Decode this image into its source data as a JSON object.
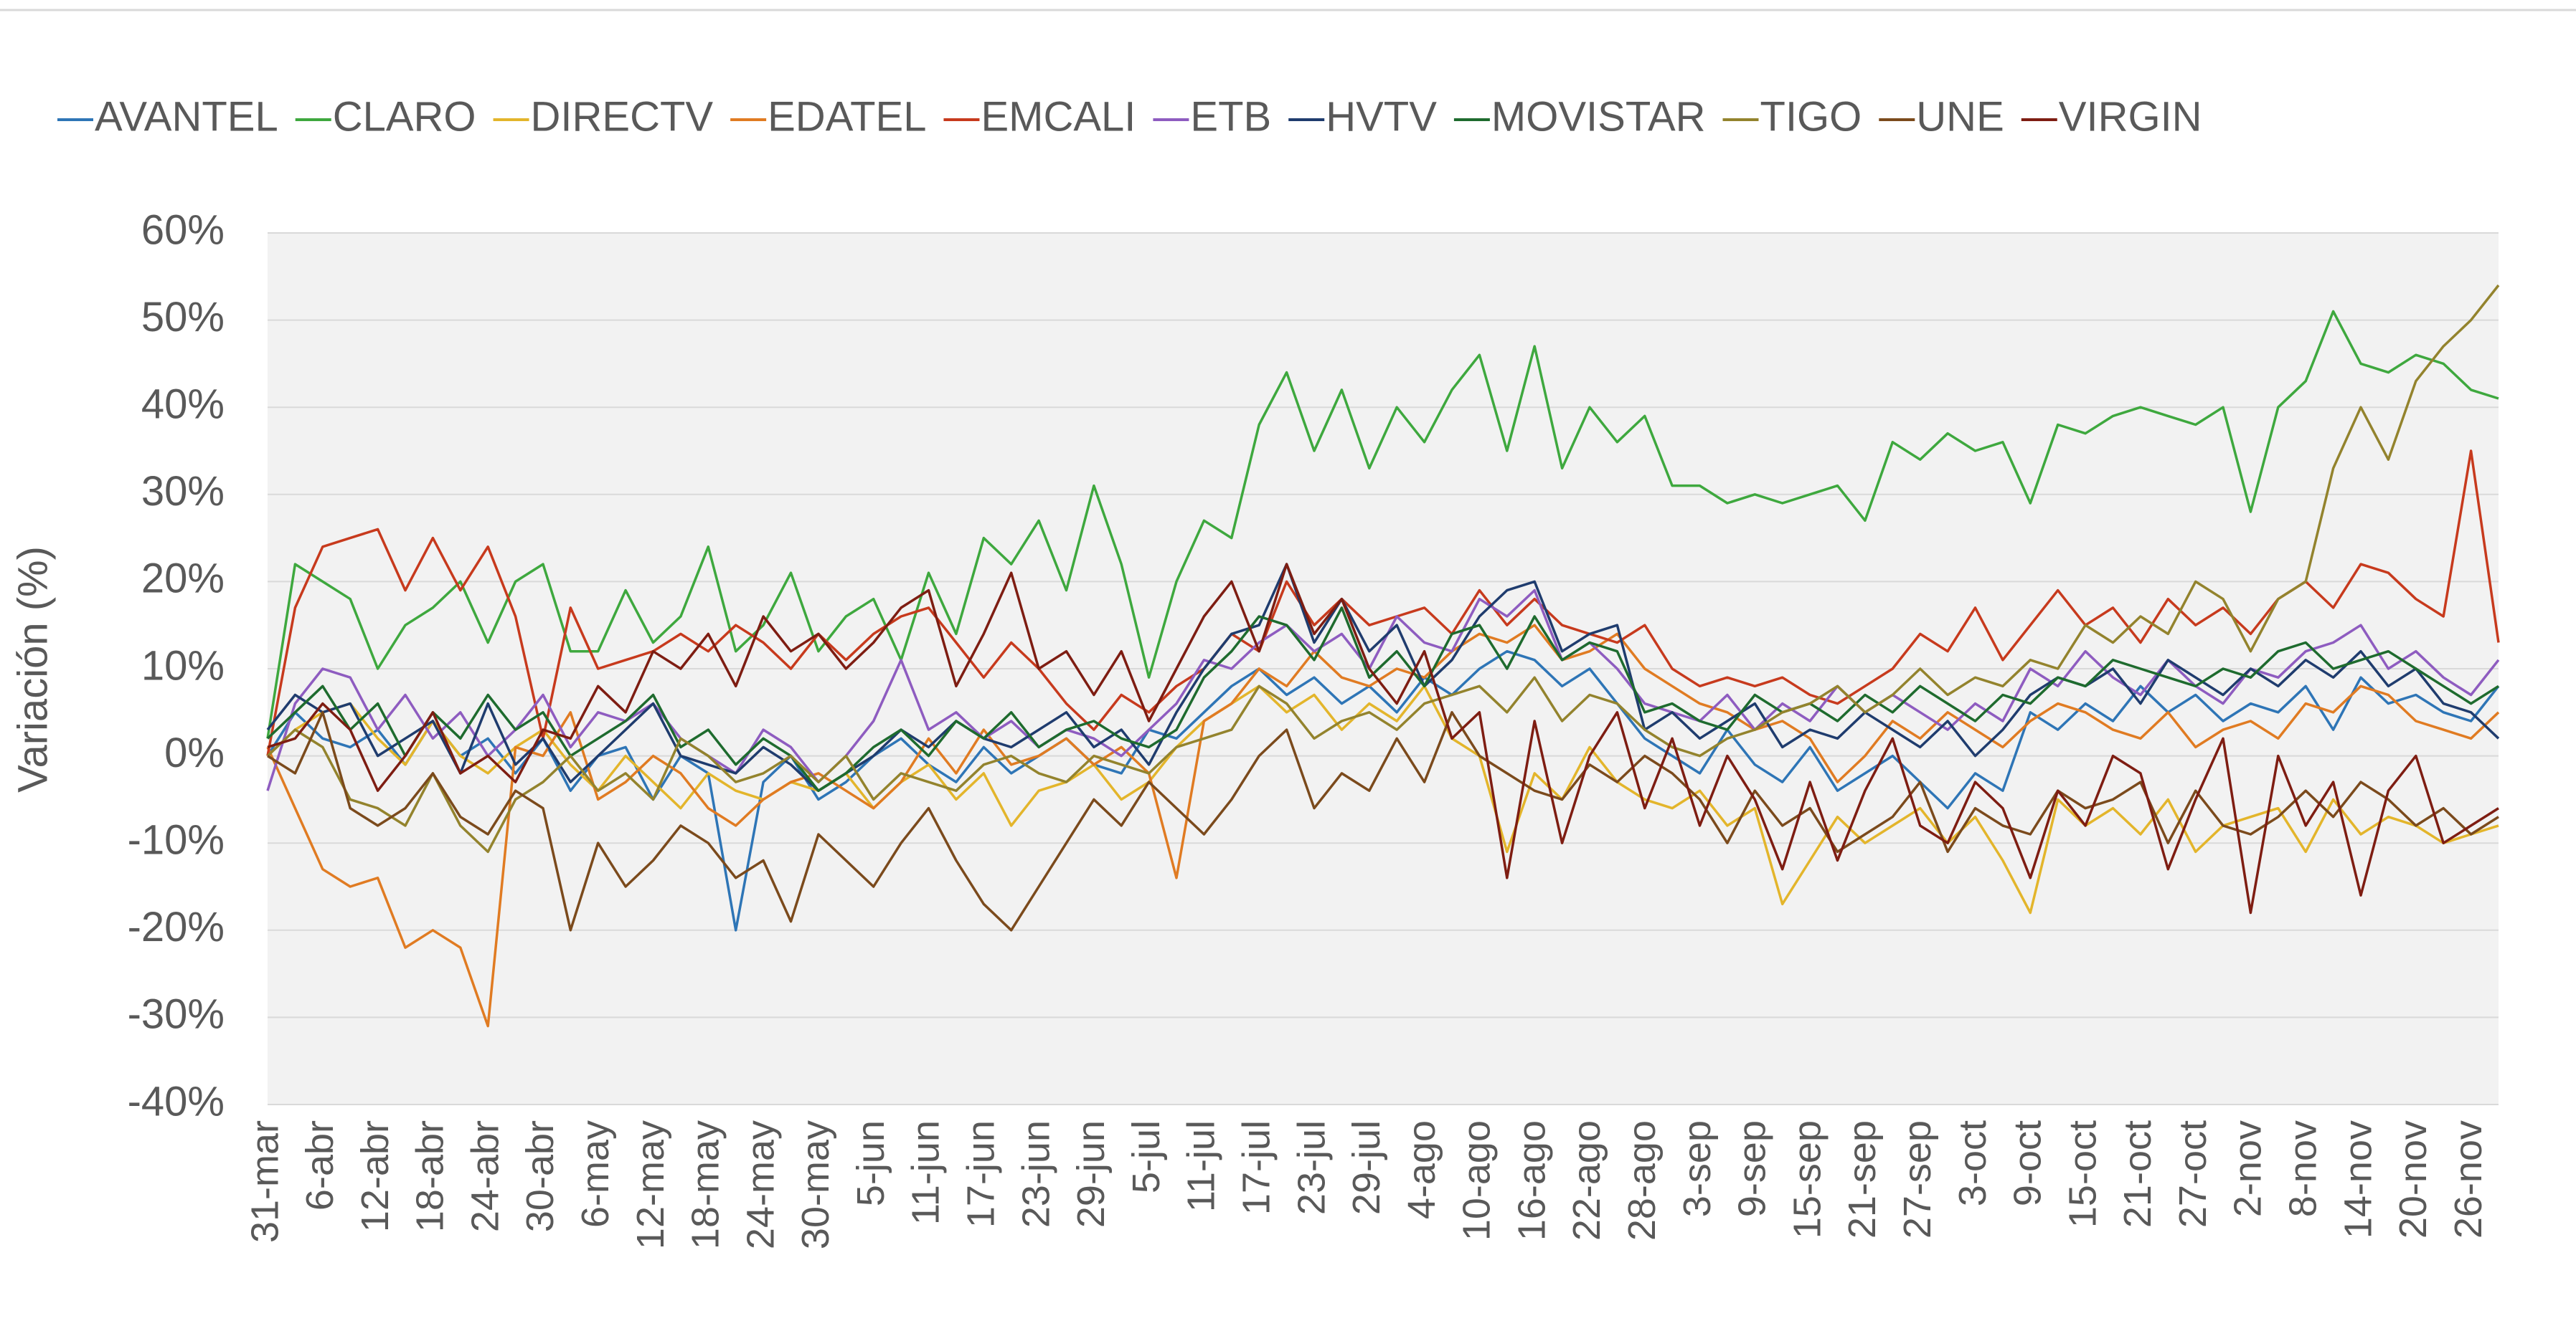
{
  "chart_data": {
    "type": "line",
    "y_label": "Variación (%)",
    "legend": "top",
    "grid": true,
    "ylim": [
      -40,
      60
    ],
    "yticks": [
      {
        "value": -40,
        "label": "-40%"
      },
      {
        "value": -30,
        "label": "-30%"
      },
      {
        "value": -20,
        "label": "-20%"
      },
      {
        "value": -10,
        "label": "-10%"
      },
      {
        "value": 0,
        "label": "0%"
      },
      {
        "value": 10,
        "label": "10%"
      },
      {
        "value": 20,
        "label": "20%"
      },
      {
        "value": 30,
        "label": "30%"
      },
      {
        "value": 40,
        "label": "40%"
      },
      {
        "value": 50,
        "label": "50%"
      },
      {
        "value": 60,
        "label": "60%"
      }
    ],
    "categories": [
      "31-mar",
      null,
      "6-abr",
      null,
      "12-abr",
      null,
      "18-abr",
      null,
      "24-abr",
      null,
      "30-abr",
      null,
      "6-may",
      null,
      "12-may",
      null,
      "18-may",
      null,
      "24-may",
      null,
      "30-may",
      null,
      "5-jun",
      null,
      "11-jun",
      null,
      "17-jun",
      null,
      "23-jun",
      null,
      "29-jun",
      null,
      "5-jul",
      null,
      "11-jul",
      null,
      "17-jul",
      null,
      "23-jul",
      null,
      "29-jul",
      null,
      "4-ago",
      null,
      "10-ago",
      null,
      "16-ago",
      null,
      "22-ago",
      null,
      "28-ago",
      null,
      "3-sep",
      null,
      "9-sep",
      null,
      "15-sep",
      null,
      "21-sep",
      null,
      "27-sep",
      null,
      "3-oct",
      null,
      "9-oct",
      null,
      "15-oct",
      null,
      "21-oct",
      null,
      "27-oct",
      null,
      "2-nov",
      null,
      "8-nov",
      null,
      "14-nov",
      null,
      "20-nov",
      null,
      "26-nov",
      null
    ],
    "series": [
      {
        "name": "AVANTEL",
        "color": "#2e75b6",
        "values": [
          0,
          5,
          2,
          1,
          3,
          -1,
          4,
          0,
          2,
          -2,
          2,
          -4,
          0,
          1,
          -5,
          0,
          -2,
          -20,
          -3,
          0,
          -5,
          -3,
          0,
          2,
          -1,
          -3,
          1,
          -2,
          0,
          2,
          -1,
          -2,
          3,
          2,
          5,
          8,
          10,
          7,
          9,
          6,
          8,
          5,
          9,
          7,
          10,
          12,
          11,
          8,
          10,
          6,
          2,
          0,
          -2,
          3,
          -1,
          -3,
          1,
          -4,
          -2,
          0,
          -3,
          -6,
          -2,
          -4,
          5,
          3,
          6,
          4,
          8,
          5,
          7,
          4,
          6,
          5,
          8,
          3,
          9,
          6,
          7,
          5,
          4,
          8
        ]
      },
      {
        "name": "CLARO",
        "color": "#3ea83e",
        "values": [
          2,
          22,
          20,
          18,
          10,
          15,
          17,
          20,
          13,
          20,
          22,
          12,
          12,
          19,
          13,
          16,
          24,
          12,
          15,
          21,
          12,
          16,
          18,
          11,
          21,
          14,
          25,
          22,
          27,
          19,
          31,
          22,
          9,
          20,
          27,
          25,
          38,
          44,
          35,
          42,
          33,
          40,
          36,
          42,
          46,
          35,
          47,
          33,
          40,
          36,
          39,
          31,
          31,
          29,
          30,
          29,
          30,
          31,
          27,
          36,
          34,
          37,
          35,
          36,
          29,
          38,
          37,
          39,
          40,
          39,
          38,
          40,
          28,
          40,
          43,
          51,
          45,
          44,
          46,
          45,
          42,
          41
        ]
      },
      {
        "name": "DIRECTV",
        "color": "#e3b52b",
        "values": [
          0,
          3,
          5,
          6,
          2,
          -1,
          4,
          0,
          -2,
          1,
          3,
          -1,
          -4,
          0,
          -3,
          -6,
          -2,
          -4,
          -5,
          -3,
          -4,
          -2,
          -6,
          -3,
          -1,
          -5,
          -2,
          -8,
          -4,
          -3,
          -1,
          -5,
          -3,
          1,
          4,
          6,
          8,
          5,
          7,
          3,
          6,
          4,
          8,
          2,
          0,
          -11,
          -2,
          -5,
          1,
          -3,
          -5,
          -6,
          -4,
          -8,
          -6,
          -17,
          -12,
          -7,
          -10,
          -8,
          -6,
          -10,
          -7,
          -12,
          -18,
          -5,
          -8,
          -6,
          -9,
          -5,
          -11,
          -8,
          -7,
          -6,
          -11,
          -5,
          -9,
          -7,
          -8,
          -10,
          -9,
          -8
        ]
      },
      {
        "name": "EDATEL",
        "color": "#e07b22",
        "values": [
          1,
          -6,
          -13,
          -15,
          -14,
          -22,
          -20,
          -22,
          -31,
          1,
          0,
          5,
          -5,
          -3,
          0,
          -2,
          -6,
          -8,
          -5,
          -3,
          -2,
          -4,
          -6,
          -3,
          2,
          -2,
          3,
          -1,
          0,
          2,
          -1,
          1,
          -2,
          -14,
          4,
          6,
          10,
          8,
          12,
          9,
          8,
          10,
          9,
          12,
          14,
          13,
          15,
          11,
          12,
          14,
          10,
          8,
          6,
          5,
          3,
          4,
          2,
          -3,
          0,
          4,
          2,
          5,
          3,
          1,
          4,
          6,
          5,
          3,
          2,
          5,
          1,
          3,
          4,
          2,
          6,
          5,
          8,
          7,
          4,
          3,
          2,
          5
        ]
      },
      {
        "name": "EMCALI",
        "color": "#c73a1d",
        "values": [
          0,
          17,
          24,
          25,
          26,
          19,
          25,
          19,
          24,
          16,
          2,
          17,
          10,
          11,
          12,
          14,
          12,
          15,
          13,
          10,
          14,
          11,
          14,
          16,
          17,
          13,
          9,
          13,
          10,
          6,
          3,
          7,
          5,
          8,
          10,
          14,
          12,
          20,
          15,
          18,
          15,
          16,
          17,
          14,
          19,
          15,
          18,
          15,
          14,
          13,
          15,
          10,
          8,
          9,
          8,
          9,
          7,
          6,
          8,
          10,
          14,
          12,
          17,
          11,
          15,
          19,
          15,
          17,
          13,
          18,
          15,
          17,
          14,
          18,
          20,
          17,
          22,
          21,
          18,
          16,
          35,
          13
        ]
      },
      {
        "name": "ETB",
        "color": "#8e5cc0",
        "values": [
          -4,
          6,
          10,
          9,
          3,
          7,
          2,
          5,
          0,
          3,
          7,
          1,
          5,
          4,
          6,
          2,
          0,
          -2,
          3,
          1,
          -3,
          0,
          4,
          11,
          3,
          5,
          2,
          4,
          1,
          3,
          2,
          0,
          3,
          6,
          11,
          10,
          13,
          15,
          12,
          14,
          10,
          16,
          13,
          12,
          18,
          16,
          19,
          11,
          13,
          10,
          6,
          5,
          4,
          7,
          3,
          6,
          4,
          8,
          5,
          7,
          5,
          3,
          6,
          4,
          10,
          8,
          12,
          9,
          7,
          11,
          8,
          6,
          10,
          9,
          12,
          13,
          15,
          10,
          12,
          9,
          7,
          11
        ]
      },
      {
        "name": "HVTV",
        "color": "#1f3c6e",
        "values": [
          3,
          7,
          5,
          6,
          0,
          2,
          4,
          -2,
          6,
          -1,
          2,
          -3,
          0,
          3,
          6,
          0,
          -1,
          -2,
          1,
          -1,
          -4,
          -2,
          0,
          3,
          1,
          4,
          2,
          1,
          3,
          5,
          1,
          3,
          -1,
          5,
          10,
          14,
          15,
          22,
          13,
          18,
          12,
          15,
          8,
          11,
          16,
          19,
          20,
          12,
          14,
          15,
          3,
          5,
          2,
          4,
          6,
          1,
          3,
          2,
          5,
          3,
          1,
          4,
          0,
          3,
          7,
          9,
          8,
          10,
          6,
          11,
          9,
          7,
          10,
          8,
          11,
          9,
          12,
          8,
          10,
          6,
          5,
          2
        ]
      },
      {
        "name": "MOVISTAR",
        "color": "#1e6b2e",
        "values": [
          2,
          5,
          8,
          3,
          6,
          0,
          5,
          2,
          7,
          3,
          5,
          0,
          2,
          4,
          7,
          1,
          3,
          -1,
          2,
          0,
          -4,
          -2,
          1,
          3,
          0,
          4,
          2,
          5,
          1,
          3,
          4,
          2,
          1,
          3,
          9,
          12,
          16,
          15,
          11,
          17,
          9,
          12,
          8,
          14,
          15,
          10,
          16,
          11,
          13,
          12,
          5,
          6,
          4,
          3,
          7,
          5,
          6,
          4,
          7,
          5,
          8,
          6,
          4,
          7,
          6,
          9,
          8,
          11,
          10,
          9,
          8,
          10,
          9,
          12,
          13,
          10,
          11,
          12,
          10,
          8,
          6,
          8
        ]
      },
      {
        "name": "TIGO",
        "color": "#93832d",
        "values": [
          0,
          3,
          1,
          -5,
          -6,
          -8,
          -2,
          -8,
          -11,
          -5,
          -3,
          0,
          -4,
          -2,
          -5,
          2,
          0,
          -3,
          -2,
          0,
          -3,
          0,
          -5,
          -2,
          -3,
          -4,
          -1,
          0,
          -2,
          -3,
          0,
          -1,
          -2,
          1,
          2,
          3,
          8,
          6,
          2,
          4,
          5,
          3,
          6,
          7,
          8,
          5,
          9,
          4,
          7,
          6,
          3,
          1,
          0,
          2,
          3,
          5,
          6,
          8,
          5,
          7,
          10,
          7,
          9,
          8,
          11,
          10,
          15,
          13,
          16,
          14,
          20,
          18,
          12,
          18,
          20,
          33,
          40,
          34,
          43,
          47,
          50,
          54
        ]
      },
      {
        "name": "UNE",
        "color": "#7b4a1c",
        "values": [
          0,
          -2,
          5,
          -6,
          -8,
          -6,
          -2,
          -7,
          -9,
          -4,
          -6,
          -20,
          -10,
          -15,
          -12,
          -8,
          -10,
          -14,
          -12,
          -19,
          -9,
          -12,
          -15,
          -10,
          -6,
          -12,
          -17,
          -20,
          -15,
          -10,
          -5,
          -8,
          -3,
          -6,
          -9,
          -5,
          0,
          3,
          -6,
          -2,
          -4,
          2,
          -3,
          5,
          0,
          -2,
          -4,
          -5,
          -1,
          -3,
          0,
          -2,
          -5,
          -10,
          -4,
          -8,
          -6,
          -11,
          -9,
          -7,
          -3,
          -11,
          -6,
          -8,
          -9,
          -4,
          -6,
          -5,
          -3,
          -10,
          -4,
          -8,
          -9,
          -7,
          -4,
          -7,
          -3,
          -5,
          -8,
          -6,
          -9,
          -7
        ]
      },
      {
        "name": "VIRGIN",
        "color": "#7e1d12",
        "values": [
          1,
          2,
          6,
          3,
          -4,
          0,
          5,
          -2,
          0,
          -3,
          3,
          2,
          8,
          5,
          12,
          10,
          14,
          8,
          16,
          12,
          14,
          10,
          13,
          17,
          19,
          8,
          14,
          21,
          10,
          12,
          7,
          12,
          4,
          10,
          16,
          20,
          12,
          22,
          14,
          18,
          10,
          6,
          12,
          2,
          5,
          -14,
          4,
          -10,
          0,
          5,
          -6,
          2,
          -8,
          0,
          -5,
          -13,
          -3,
          -12,
          -4,
          2,
          -8,
          -10,
          -3,
          -6,
          -14,
          -4,
          -8,
          0,
          -2,
          -13,
          -5,
          2,
          -18,
          0,
          -8,
          -3,
          -16,
          -4,
          0,
          -10,
          -8,
          -6
        ]
      }
    ]
  }
}
